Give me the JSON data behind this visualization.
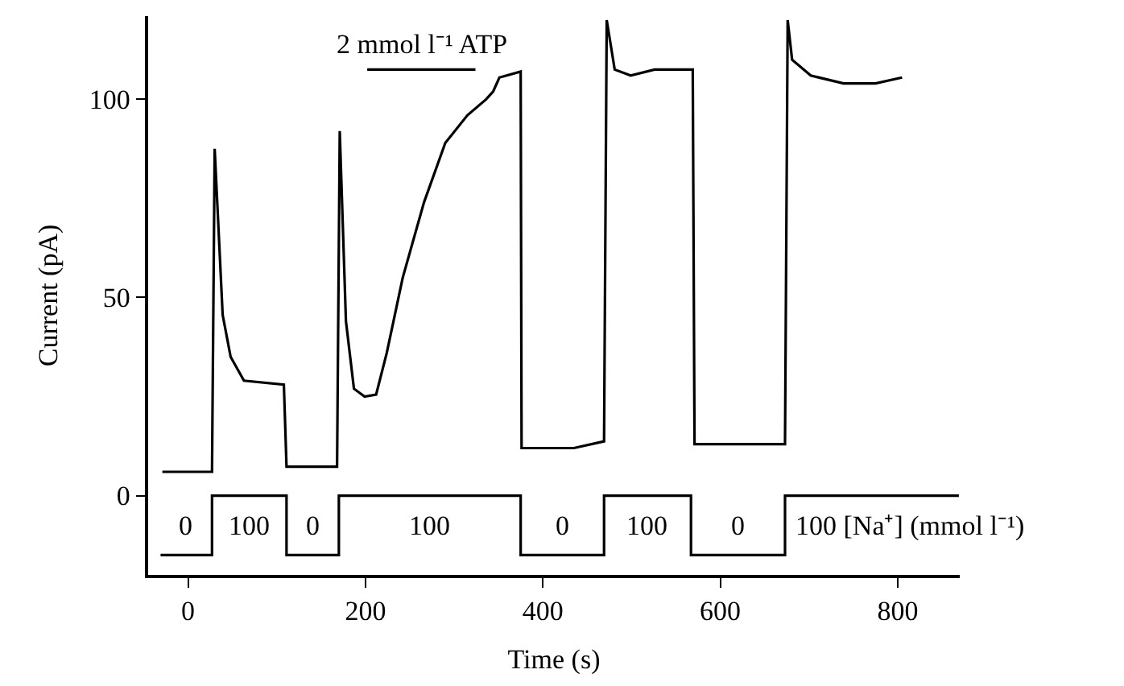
{
  "chart_data": {
    "type": "line",
    "xlabel": "Time (s)",
    "ylabel": "Current (pA)",
    "xlim": [
      -45,
      870
    ],
    "xticks": [
      0,
      200,
      400,
      600,
      800
    ],
    "ylim": [
      -20,
      121
    ],
    "yticks": [
      0,
      50,
      100
    ],
    "grid": false,
    "legend": false,
    "marker": "none",
    "line_style": "solid",
    "series": [
      {
        "color": "#000000",
        "x": [
          -29,
          27,
          30,
          39,
          48,
          63,
          108,
          111,
          168,
          171,
          178,
          187,
          199,
          212,
          224,
          242,
          266,
          290,
          315,
          336,
          344,
          351,
          375,
          376,
          435,
          469,
          472,
          481,
          499,
          526,
          569,
          571,
          673,
          676,
          681,
          702,
          739,
          775,
          805
        ],
        "values": [
          6,
          6,
          87.5,
          45.6,
          35,
          29,
          28,
          7.3,
          7.3,
          92,
          44,
          27,
          25,
          25.5,
          36,
          55,
          74,
          89,
          96,
          100,
          102,
          105.5,
          107,
          12,
          12,
          13.7,
          120,
          107.5,
          106,
          107.5,
          107.5,
          13,
          13,
          120,
          110,
          106,
          104,
          104,
          105.5
        ]
      },
      {
        "type": "step",
        "color": "#000000",
        "x": [
          -31,
          27,
          111,
          170,
          375,
          469,
          567,
          673,
          869
        ],
        "values": [
          -15,
          0,
          -15,
          0,
          -15,
          0,
          -15,
          0,
          0
        ]
      },
      {
        "name": "2 mmol l⁻¹ ATP",
        "color": "#000000",
        "x": [
          202,
          324
        ],
        "values": [
          107.5,
          107.5
        ]
      }
    ],
    "annotations": [
      "0",
      "100",
      "0",
      "100",
      "0",
      "100",
      "0",
      "100 [Na⁺] (mmol l⁻¹)"
    ]
  }
}
